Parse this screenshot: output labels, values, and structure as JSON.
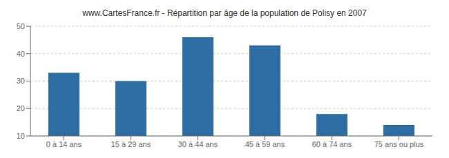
{
  "chart_data": {
    "type": "bar",
    "title": "www.CartesFrance.fr - Répartition par âge de la population de Polisy en 2007",
    "categories": [
      "0 à 14 ans",
      "15 à 29 ans",
      "30 à 44 ans",
      "45 à 59 ans",
      "60 à 74 ans",
      "75 ans ou plus"
    ],
    "values": [
      33,
      30,
      46,
      43,
      18,
      14
    ],
    "color": "#2e6da4",
    "ylim": [
      10,
      50
    ],
    "yticks": [
      10,
      20,
      30,
      40,
      50
    ],
    "grid": true
  }
}
